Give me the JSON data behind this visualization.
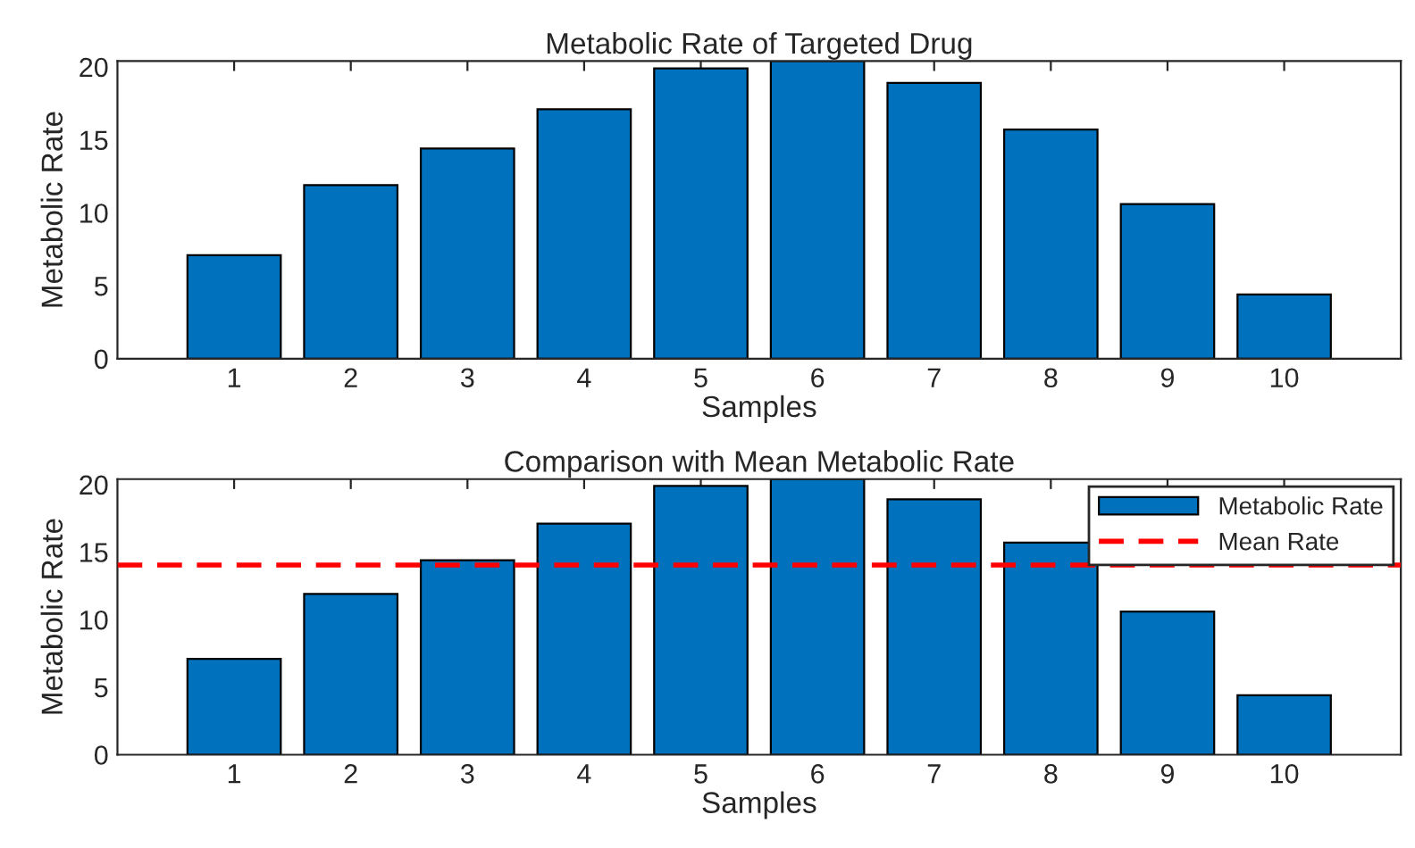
{
  "chart_data": [
    {
      "type": "bar",
      "title": "Metabolic Rate of Targeted Drug",
      "xlabel": "Samples",
      "ylabel": "Metabolic Rate",
      "categories": [
        "1",
        "2",
        "3",
        "4",
        "5",
        "6",
        "7",
        "8",
        "9",
        "10"
      ],
      "series": [
        {
          "color": "#0072bd",
          "values": [
            7.1,
            11.9,
            14.4,
            17.1,
            19.9,
            20.4,
            18.9,
            15.7,
            10.6,
            4.4
          ]
        }
      ],
      "ylim": [
        0,
        20.4
      ],
      "yticks": [
        0,
        5,
        10,
        15,
        20
      ],
      "grid": false,
      "legend": false
    },
    {
      "type": "bar",
      "title": "Comparison with Mean Metabolic Rate",
      "xlabel": "Samples",
      "ylabel": "Metabolic Rate",
      "categories": [
        "1",
        "2",
        "3",
        "4",
        "5",
        "6",
        "7",
        "8",
        "9",
        "10"
      ],
      "series": [
        {
          "name": "Metabolic Rate",
          "color": "#0072bd",
          "values": [
            7.1,
            11.9,
            14.4,
            17.1,
            19.9,
            20.4,
            18.9,
            15.7,
            10.6,
            4.4
          ]
        }
      ],
      "ref_lines": [
        {
          "axis": "y",
          "value": 14.04,
          "label": "Mean Rate",
          "color": "#ff0000",
          "line_style": "dashed"
        }
      ],
      "ylim": [
        0,
        20.4
      ],
      "yticks": [
        0,
        5,
        10,
        15,
        20
      ],
      "grid": false,
      "legend": "top right"
    }
  ]
}
